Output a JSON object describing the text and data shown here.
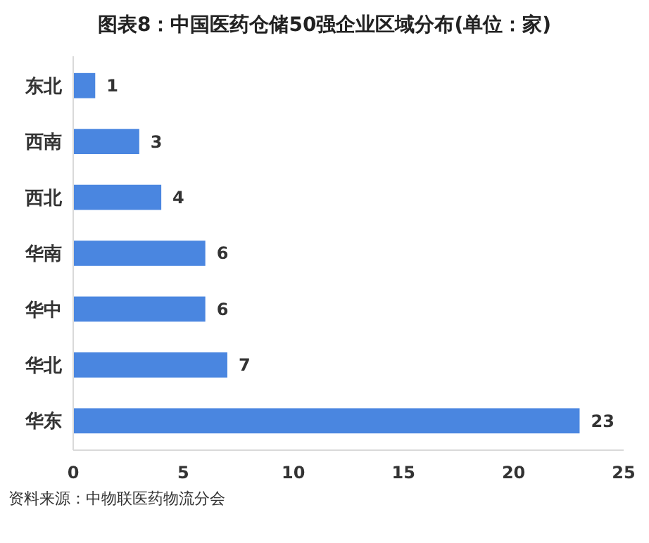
{
  "chart_data": {
    "type": "bar",
    "orientation": "horizontal",
    "title": "图表8：中国医药仓储50强企业区域分布(单位：家)",
    "categories": [
      "东北",
      "西南",
      "西北",
      "华南",
      "华中",
      "华北",
      "华东"
    ],
    "values": [
      1,
      3,
      4,
      6,
      6,
      7,
      23
    ],
    "color": "#4a86e0",
    "xlim": [
      0,
      25
    ],
    "xticks": [
      0,
      5,
      10,
      15,
      20,
      25
    ],
    "data_labels": true,
    "grid": false,
    "annotations": [
      "资料来源：中物联医药物流分会"
    ]
  }
}
